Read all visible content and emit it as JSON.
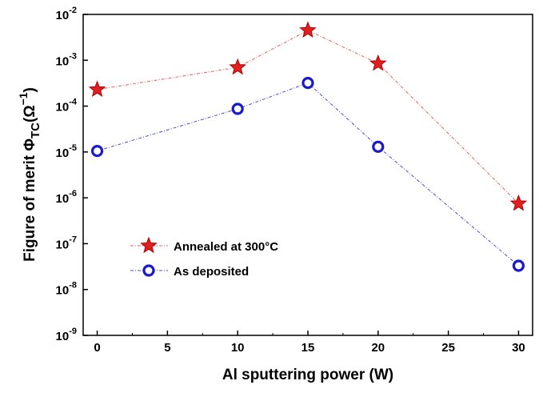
{
  "chart_data": {
    "type": "line",
    "xlabel": "Al sputtering power (W)",
    "ylabel_main": "Figure of merit Φ",
    "ylabel_sub": "TC",
    "ylabel_unit": "(Ω",
    "ylabel_exp": "−1",
    "ylabel_close": ")",
    "y_scale": "log",
    "xlim": [
      -1,
      31
    ],
    "ylim": [
      1e-09,
      0.01
    ],
    "x_ticks": [
      0,
      5,
      10,
      15,
      20,
      25,
      30
    ],
    "x_tick_labels": [
      "0",
      "5",
      "10",
      "15",
      "20",
      "25",
      "30"
    ],
    "y_ticks": [
      {
        "value": 1e-09,
        "base": "10",
        "exp": "-9"
      },
      {
        "value": 1e-08,
        "base": "10",
        "exp": "-8"
      },
      {
        "value": 1e-07,
        "base": "10",
        "exp": "-7"
      },
      {
        "value": 1e-06,
        "base": "10",
        "exp": "-6"
      },
      {
        "value": 1e-05,
        "base": "10",
        "exp": "-5"
      },
      {
        "value": 0.0001,
        "base": "10",
        "exp": "-4"
      },
      {
        "value": 0.001,
        "base": "10",
        "exp": "-3"
      },
      {
        "value": 0.01,
        "base": "10",
        "exp": "-2"
      }
    ],
    "grid": false,
    "legend_position": "bottom-left",
    "series": [
      {
        "name": "Annealed at 300°C",
        "marker": "star",
        "color": "#e02020",
        "line_color": "#e06060",
        "x": [
          0,
          10,
          15,
          20,
          30
        ],
        "y": [
          0.00023,
          0.0007,
          0.0045,
          0.00085,
          7.5e-07
        ]
      },
      {
        "name": "As deposited",
        "marker": "circle",
        "color": "#1a1acc",
        "line_color": "#4a4ad0",
        "x": [
          0,
          10,
          15,
          20,
          30
        ],
        "y": [
          1.05e-05,
          8.7e-05,
          0.00032,
          1.3e-05,
          3.3e-08
        ]
      }
    ]
  }
}
